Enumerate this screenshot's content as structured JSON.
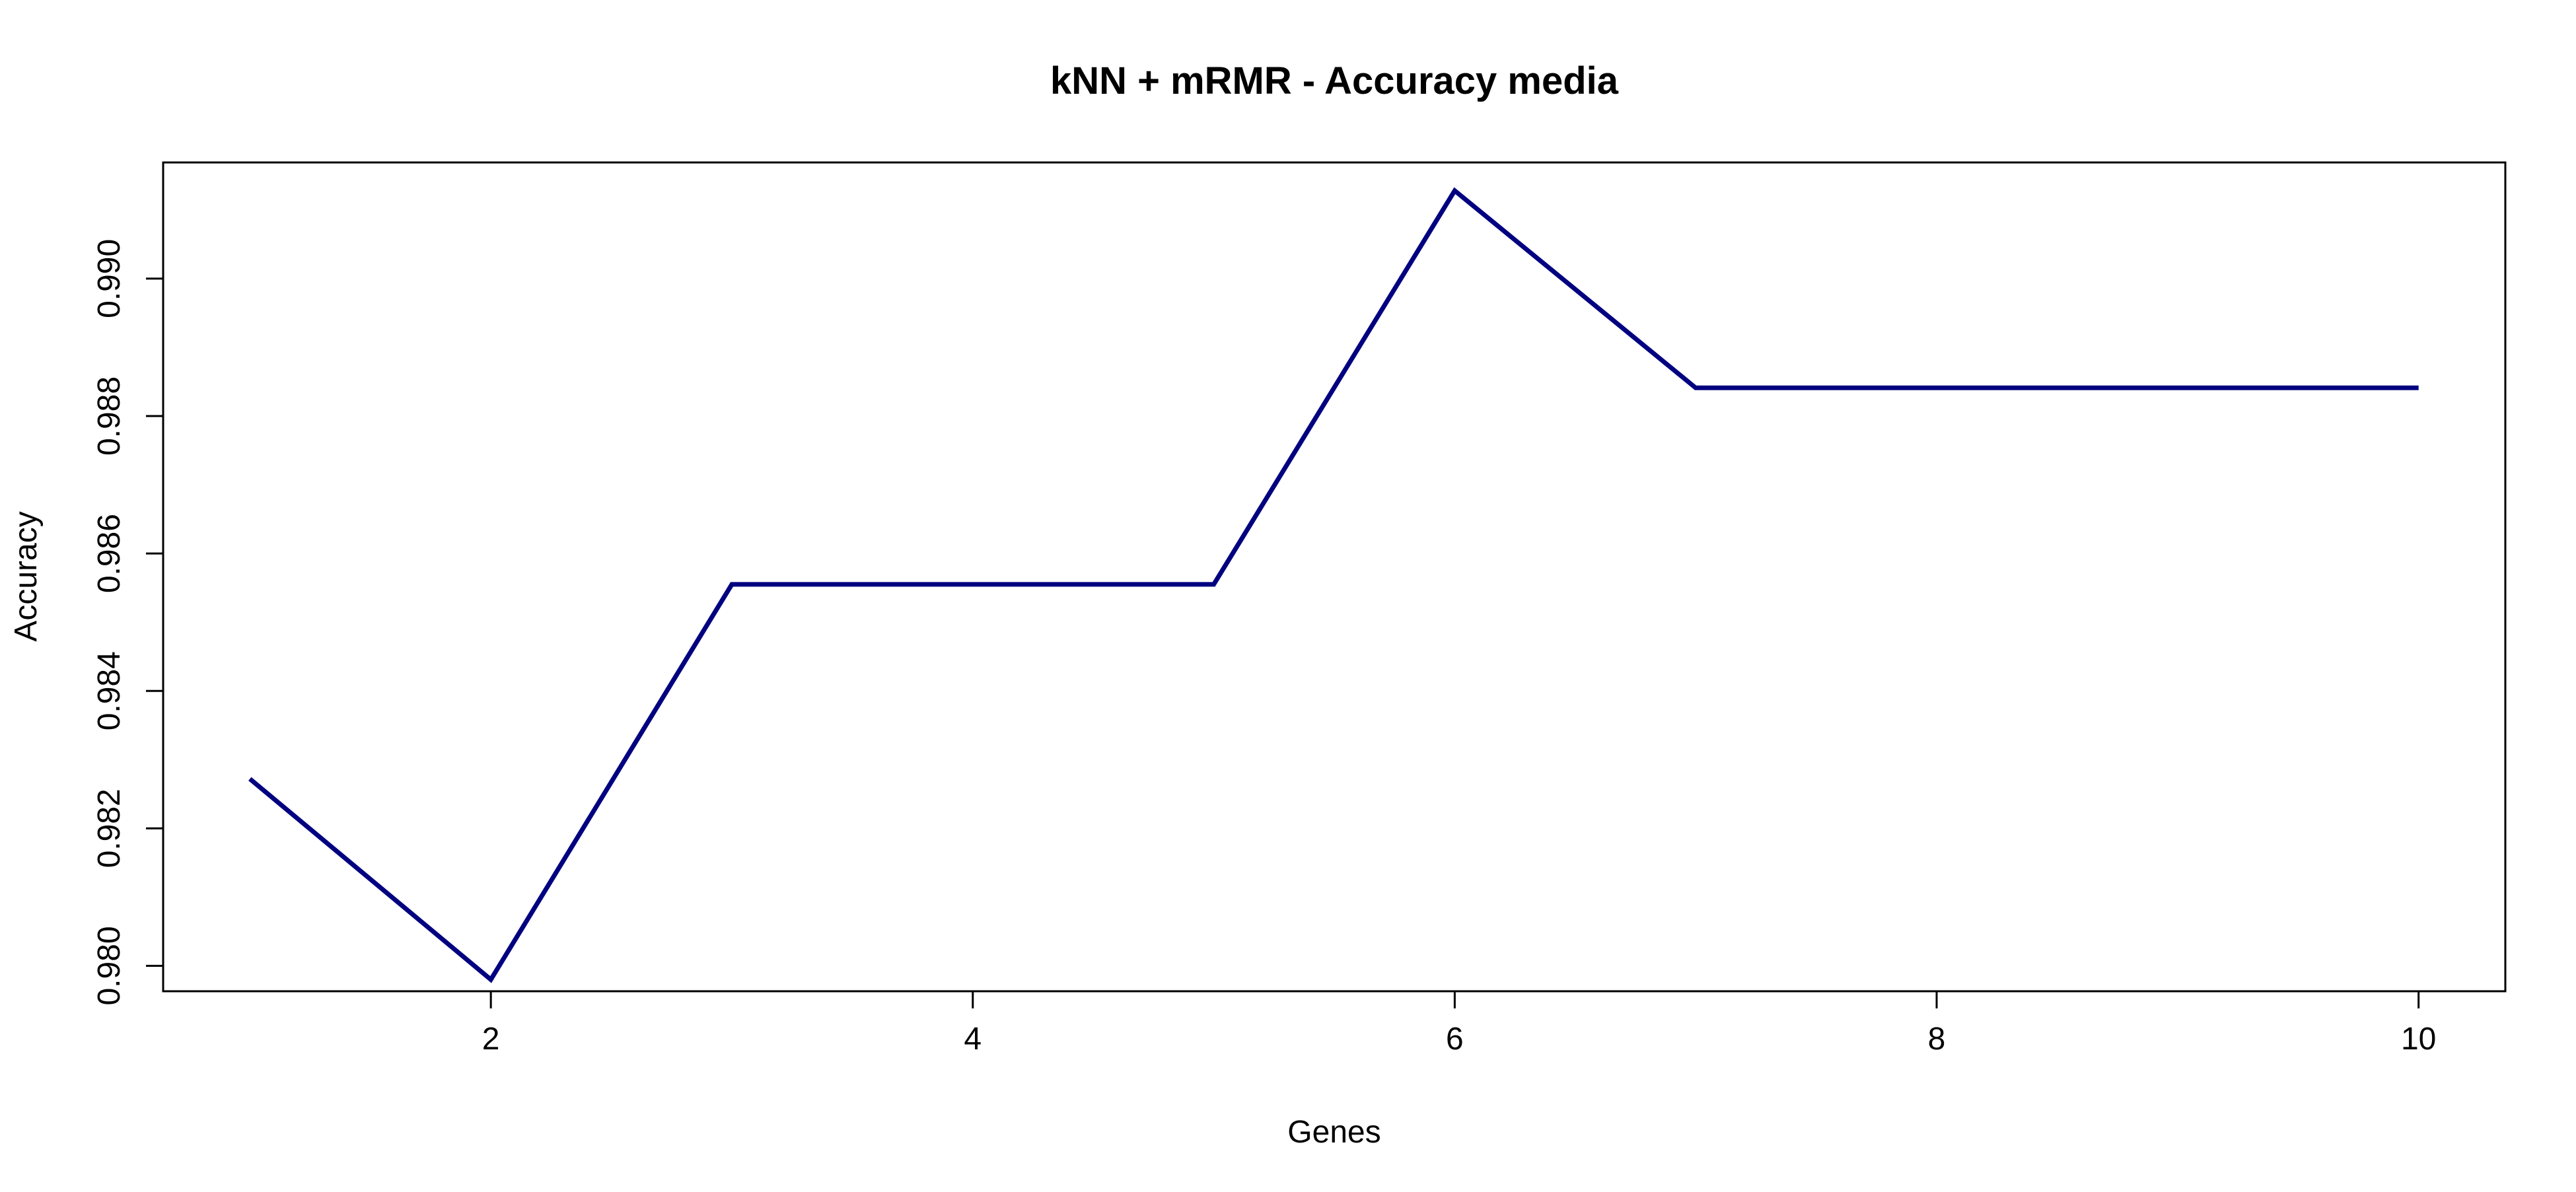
{
  "chart_data": {
    "type": "line",
    "title": "kNN + mRMR - Accuracy media",
    "xlabel": "Genes",
    "ylabel": "Accuracy",
    "xlim": [
      0.64,
      10.36
    ],
    "ylim": [
      0.97963,
      0.99169
    ],
    "x_ticks": [
      2,
      4,
      6,
      8,
      10
    ],
    "y_ticks": [
      0.98,
      0.982,
      0.984,
      0.986,
      0.988,
      0.99
    ],
    "x_tick_labels": [
      "2",
      "4",
      "6",
      "8",
      "10"
    ],
    "y_tick_labels": [
      "0.980",
      "0.982",
      "0.984",
      "0.986",
      "0.988",
      "0.990"
    ],
    "grid": false,
    "series": [
      {
        "color": "#000080",
        "x": [
          1,
          2,
          3,
          4,
          5,
          6,
          7,
          8,
          9,
          10
        ],
        "y": [
          0.98272,
          0.9798,
          0.98555,
          0.98555,
          0.98555,
          0.99128,
          0.98841,
          0.98841,
          0.98841,
          0.98841
        ]
      }
    ]
  }
}
